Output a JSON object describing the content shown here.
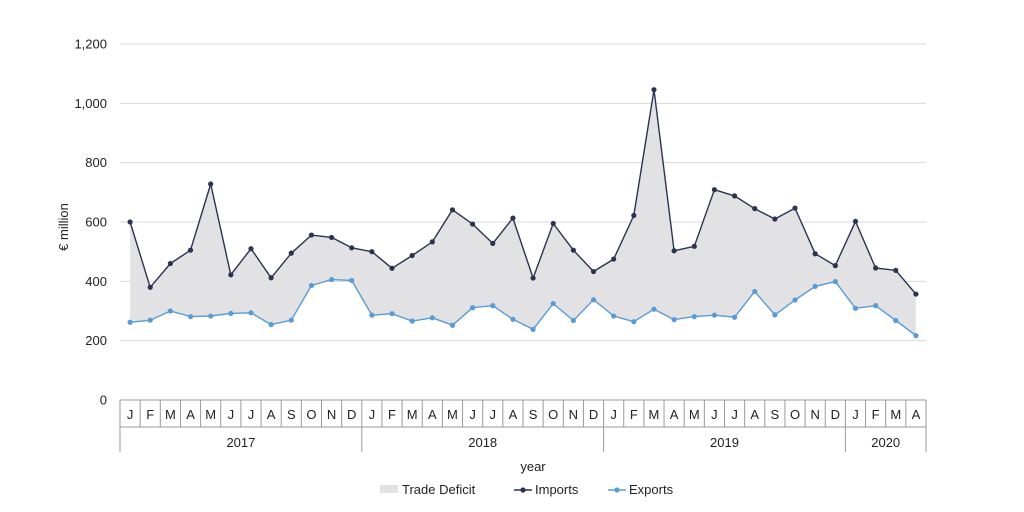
{
  "chart_data": {
    "type": "line",
    "ylabel": "€ million",
    "xlabel": "year",
    "ylim": [
      0,
      1200
    ],
    "yticks": [
      "0",
      "200",
      "400",
      "600",
      "800",
      "1,000",
      "1,200"
    ],
    "ytick_values": [
      0,
      200,
      400,
      600,
      800,
      1000,
      1200
    ],
    "grid": "horizontal",
    "legend_position": "bottom",
    "months": [
      "J",
      "F",
      "M",
      "A",
      "M",
      "J",
      "J",
      "A",
      "S",
      "O",
      "N",
      "D",
      "J",
      "F",
      "M",
      "A",
      "M",
      "J",
      "J",
      "A",
      "S",
      "O",
      "N",
      "D",
      "J",
      "F",
      "M",
      "A",
      "M",
      "J",
      "J",
      "A",
      "S",
      "O",
      "N",
      "D",
      "J",
      "F",
      "M",
      "A"
    ],
    "years": [
      {
        "label": "2017",
        "count": 12
      },
      {
        "label": "2018",
        "count": 12
      },
      {
        "label": "2019",
        "count": 12
      },
      {
        "label": "2020",
        "count": 4
      }
    ],
    "series": [
      {
        "name": "Imports",
        "color": "#2b3350",
        "values": [
          600,
          380,
          460,
          505,
          728,
          422,
          510,
          412,
          495,
          556,
          548,
          513,
          500,
          444,
          487,
          533,
          641,
          593,
          528,
          613,
          411,
          595,
          505,
          433,
          475,
          622,
          1046,
          503,
          518,
          709,
          688,
          645,
          610,
          647,
          493,
          453,
          602,
          445,
          437,
          357
        ]
      },
      {
        "name": "Exports",
        "color": "#5b9bd5",
        "values": [
          262,
          269,
          300,
          281,
          283,
          292,
          294,
          254,
          269,
          386,
          406,
          403,
          286,
          291,
          266,
          277,
          252,
          311,
          318,
          272,
          238,
          325,
          268,
          338,
          283,
          264,
          306,
          271,
          281,
          286,
          279,
          366,
          287,
          337,
          383,
          399,
          309,
          318,
          268,
          217
        ]
      }
    ],
    "legend": [
      {
        "name": "Trade Deficit",
        "kind": "area",
        "color": "#e2e2e4"
      },
      {
        "name": "Imports",
        "kind": "line",
        "color": "#2b3350"
      },
      {
        "name": "Exports",
        "kind": "line",
        "color": "#5b9bd5"
      }
    ]
  }
}
